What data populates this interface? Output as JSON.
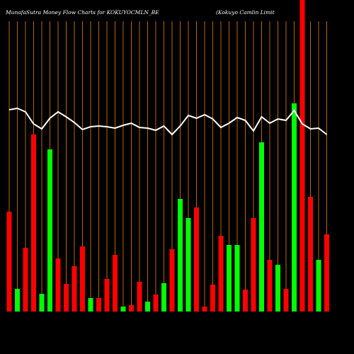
{
  "chart_data": {
    "type": "bar",
    "title": "MunafaSutra  Money Flow  Charts for KOKUYOCMLN_BE",
    "subtitle": "(Kokuyo  Camlin  Limit",
    "values": [
      141,
      32,
      90,
      250,
      25,
      229,
      75,
      39,
      64,
      92,
      19,
      19,
      46,
      80,
      7,
      9,
      42,
      14,
      24,
      40,
      88,
      159,
      132,
      147,
      7,
      38,
      107,
      94,
      94,
      31,
      132,
      239,
      73,
      66,
      32,
      294,
      450,
      162,
      73,
      109
    ],
    "colors": [
      "#ff0000",
      "#00ff00",
      "#ff0000",
      "#ff0000",
      "#00ff00",
      "#00ff00",
      "#ff0000",
      "#ff0000",
      "#ff0000",
      "#ff0000",
      "#00ff00",
      "#ff0000",
      "#ff0000",
      "#ff0000",
      "#00ff00",
      "#ff0000",
      "#ff0000",
      "#00ff00",
      "#ff0000",
      "#00ff00",
      "#ff0000",
      "#00ff00",
      "#00ff00",
      "#ff0000",
      "#ff0000",
      "#ff0000",
      "#ff0000",
      "#00ff00",
      "#00ff00",
      "#ff0000",
      "#ff0000",
      "#00ff00",
      "#ff0000",
      "#00ff00",
      "#ff0000",
      "#00ff00",
      "#ff0000",
      "#ff0000",
      "#00ff00",
      "#ff0000"
    ],
    "line": {
      "color": "#ffffff",
      "values": [
        285,
        287,
        282,
        265,
        258,
        273,
        282,
        275,
        267,
        257,
        261,
        262,
        261,
        259,
        263,
        266,
        260,
        259,
        256,
        262,
        250,
        262,
        277,
        273,
        278,
        272,
        260,
        266,
        274,
        270,
        255,
        275,
        266,
        272,
        270,
        284,
        265,
        258,
        259,
        250
      ]
    },
    "ylim": [
      0,
      440
    ],
    "gridline_color": "#b8660b"
  }
}
